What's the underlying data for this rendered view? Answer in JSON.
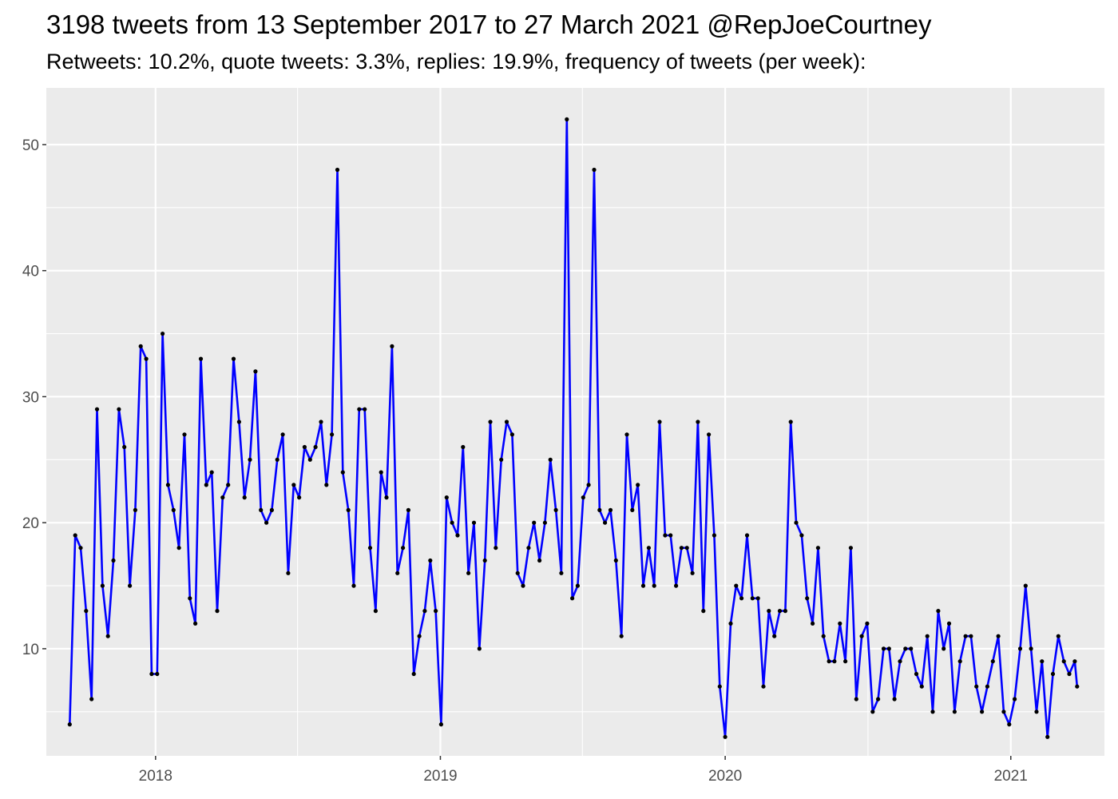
{
  "chart_data": {
    "type": "line",
    "title": "3198 tweets from 13 September 2017 to 27 March 2021 @RepJoeCourtney",
    "subtitle": "Retweets: 10.2%, quote tweets: 3.3%, replies: 19.9%, frequency of tweets (per week):",
    "xlabel": "",
    "ylabel": "",
    "x_axis": {
      "type": "date",
      "range": [
        "2017-08-14",
        "2021-05-01"
      ],
      "ticks": [
        "2018",
        "2019",
        "2020",
        "2021"
      ]
    },
    "y_axis": {
      "range": [
        1.5,
        54.5
      ],
      "ticks": [
        10,
        20,
        30,
        40,
        50
      ]
    },
    "grid": true,
    "line_color": "#0000ff",
    "point_color": "#000000",
    "panel_background": "#ebebeb",
    "series": [
      {
        "points": [
          [
            "2017-09-13",
            4
          ],
          [
            "2017-09-20",
            19
          ],
          [
            "2017-09-27",
            18
          ],
          [
            "2017-10-04",
            13
          ],
          [
            "2017-10-11",
            6
          ],
          [
            "2017-10-18",
            29
          ],
          [
            "2017-10-25",
            15
          ],
          [
            "2017-11-01",
            11
          ],
          [
            "2017-11-08",
            17
          ],
          [
            "2017-11-15",
            29
          ],
          [
            "2017-11-22",
            26
          ],
          [
            "2017-11-29",
            15
          ],
          [
            "2017-12-06",
            21
          ],
          [
            "2017-12-13",
            34
          ],
          [
            "2017-12-20",
            33
          ],
          [
            "2017-12-27",
            8
          ],
          [
            "2018-01-03",
            8
          ],
          [
            "2018-01-10",
            35
          ],
          [
            "2018-01-17",
            23
          ],
          [
            "2018-01-24",
            21
          ],
          [
            "2018-01-31",
            18
          ],
          [
            "2018-02-07",
            27
          ],
          [
            "2018-02-14",
            14
          ],
          [
            "2018-02-21",
            12
          ],
          [
            "2018-02-28",
            33
          ],
          [
            "2018-03-07",
            23
          ],
          [
            "2018-03-14",
            24
          ],
          [
            "2018-03-21",
            13
          ],
          [
            "2018-03-28",
            22
          ],
          [
            "2018-04-04",
            23
          ],
          [
            "2018-04-11",
            33
          ],
          [
            "2018-04-18",
            28
          ],
          [
            "2018-04-25",
            22
          ],
          [
            "2018-05-02",
            25
          ],
          [
            "2018-05-09",
            32
          ],
          [
            "2018-05-16",
            21
          ],
          [
            "2018-05-23",
            20
          ],
          [
            "2018-05-30",
            21
          ],
          [
            "2018-06-06",
            25
          ],
          [
            "2018-06-13",
            27
          ],
          [
            "2018-06-20",
            16
          ],
          [
            "2018-06-27",
            23
          ],
          [
            "2018-07-04",
            22
          ],
          [
            "2018-07-11",
            26
          ],
          [
            "2018-07-18",
            25
          ],
          [
            "2018-07-25",
            26
          ],
          [
            "2018-08-01",
            28
          ],
          [
            "2018-08-08",
            23
          ],
          [
            "2018-08-15",
            27
          ],
          [
            "2018-08-22",
            48
          ],
          [
            "2018-08-29",
            24
          ],
          [
            "2018-09-05",
            21
          ],
          [
            "2018-09-12",
            15
          ],
          [
            "2018-09-19",
            29
          ],
          [
            "2018-09-26",
            29
          ],
          [
            "2018-10-03",
            18
          ],
          [
            "2018-10-10",
            13
          ],
          [
            "2018-10-17",
            24
          ],
          [
            "2018-10-24",
            22
          ],
          [
            "2018-10-31",
            34
          ],
          [
            "2018-11-07",
            16
          ],
          [
            "2018-11-14",
            18
          ],
          [
            "2018-11-21",
            21
          ],
          [
            "2018-11-28",
            8
          ],
          [
            "2018-12-05",
            11
          ],
          [
            "2018-12-12",
            13
          ],
          [
            "2018-12-19",
            17
          ],
          [
            "2018-12-26",
            13
          ],
          [
            "2019-01-02",
            4
          ],
          [
            "2019-01-09",
            22
          ],
          [
            "2019-01-16",
            20
          ],
          [
            "2019-01-23",
            19
          ],
          [
            "2019-01-30",
            26
          ],
          [
            "2019-02-06",
            16
          ],
          [
            "2019-02-13",
            20
          ],
          [
            "2019-02-20",
            10
          ],
          [
            "2019-02-27",
            17
          ],
          [
            "2019-03-06",
            28
          ],
          [
            "2019-03-13",
            18
          ],
          [
            "2019-03-20",
            25
          ],
          [
            "2019-03-27",
            28
          ],
          [
            "2019-04-03",
            27
          ],
          [
            "2019-04-10",
            16
          ],
          [
            "2019-04-17",
            15
          ],
          [
            "2019-04-24",
            18
          ],
          [
            "2019-05-01",
            20
          ],
          [
            "2019-05-08",
            17
          ],
          [
            "2019-05-15",
            20
          ],
          [
            "2019-05-22",
            25
          ],
          [
            "2019-05-29",
            21
          ],
          [
            "2019-06-05",
            16
          ],
          [
            "2019-06-12",
            52
          ],
          [
            "2019-06-19",
            14
          ],
          [
            "2019-06-26",
            15
          ],
          [
            "2019-07-03",
            22
          ],
          [
            "2019-07-10",
            23
          ],
          [
            "2019-07-17",
            48
          ],
          [
            "2019-07-24",
            21
          ],
          [
            "2019-07-31",
            20
          ],
          [
            "2019-08-07",
            21
          ],
          [
            "2019-08-14",
            17
          ],
          [
            "2019-08-21",
            11
          ],
          [
            "2019-08-28",
            27
          ],
          [
            "2019-09-04",
            21
          ],
          [
            "2019-09-11",
            23
          ],
          [
            "2019-09-18",
            15
          ],
          [
            "2019-09-25",
            18
          ],
          [
            "2019-10-02",
            15
          ],
          [
            "2019-10-09",
            28
          ],
          [
            "2019-10-16",
            19
          ],
          [
            "2019-10-23",
            19
          ],
          [
            "2019-10-30",
            15
          ],
          [
            "2019-11-06",
            18
          ],
          [
            "2019-11-13",
            18
          ],
          [
            "2019-11-20",
            16
          ],
          [
            "2019-11-27",
            28
          ],
          [
            "2019-12-04",
            13
          ],
          [
            "2019-12-11",
            27
          ],
          [
            "2019-12-18",
            19
          ],
          [
            "2019-12-25",
            7
          ],
          [
            "2020-01-01",
            3
          ],
          [
            "2020-01-08",
            12
          ],
          [
            "2020-01-15",
            15
          ],
          [
            "2020-01-22",
            14
          ],
          [
            "2020-01-29",
            19
          ],
          [
            "2020-02-05",
            14
          ],
          [
            "2020-02-12",
            14
          ],
          [
            "2020-02-19",
            7
          ],
          [
            "2020-02-26",
            13
          ],
          [
            "2020-03-04",
            11
          ],
          [
            "2020-03-11",
            13
          ],
          [
            "2020-03-18",
            13
          ],
          [
            "2020-03-25",
            28
          ],
          [
            "2020-04-01",
            20
          ],
          [
            "2020-04-08",
            19
          ],
          [
            "2020-04-15",
            14
          ],
          [
            "2020-04-22",
            12
          ],
          [
            "2020-04-29",
            18
          ],
          [
            "2020-05-06",
            11
          ],
          [
            "2020-05-13",
            9
          ],
          [
            "2020-05-20",
            9
          ],
          [
            "2020-05-27",
            12
          ],
          [
            "2020-06-03",
            9
          ],
          [
            "2020-06-10",
            18
          ],
          [
            "2020-06-17",
            6
          ],
          [
            "2020-06-24",
            11
          ],
          [
            "2020-07-01",
            12
          ],
          [
            "2020-07-08",
            5
          ],
          [
            "2020-07-15",
            6
          ],
          [
            "2020-07-22",
            10
          ],
          [
            "2020-07-29",
            10
          ],
          [
            "2020-08-05",
            6
          ],
          [
            "2020-08-12",
            9
          ],
          [
            "2020-08-19",
            10
          ],
          [
            "2020-08-26",
            10
          ],
          [
            "2020-09-02",
            8
          ],
          [
            "2020-09-09",
            7
          ],
          [
            "2020-09-16",
            11
          ],
          [
            "2020-09-23",
            5
          ],
          [
            "2020-09-30",
            13
          ],
          [
            "2020-10-07",
            10
          ],
          [
            "2020-10-14",
            12
          ],
          [
            "2020-10-21",
            5
          ],
          [
            "2020-10-28",
            9
          ],
          [
            "2020-11-04",
            11
          ],
          [
            "2020-11-11",
            11
          ],
          [
            "2020-11-18",
            7
          ],
          [
            "2020-11-25",
            5
          ],
          [
            "2020-12-02",
            7
          ],
          [
            "2020-12-09",
            9
          ],
          [
            "2020-12-16",
            11
          ],
          [
            "2020-12-23",
            5
          ],
          [
            "2020-12-30",
            4
          ],
          [
            "2021-01-06",
            6
          ],
          [
            "2021-01-13",
            10
          ],
          [
            "2021-01-20",
            15
          ],
          [
            "2021-01-27",
            10
          ],
          [
            "2021-02-03",
            5
          ],
          [
            "2021-02-10",
            9
          ],
          [
            "2021-02-17",
            3
          ],
          [
            "2021-02-24",
            8
          ],
          [
            "2021-03-03",
            11
          ],
          [
            "2021-03-10",
            9
          ],
          [
            "2021-03-17",
            8
          ],
          [
            "2021-03-24",
            9
          ],
          [
            "2021-03-27",
            7
          ]
        ]
      }
    ]
  }
}
